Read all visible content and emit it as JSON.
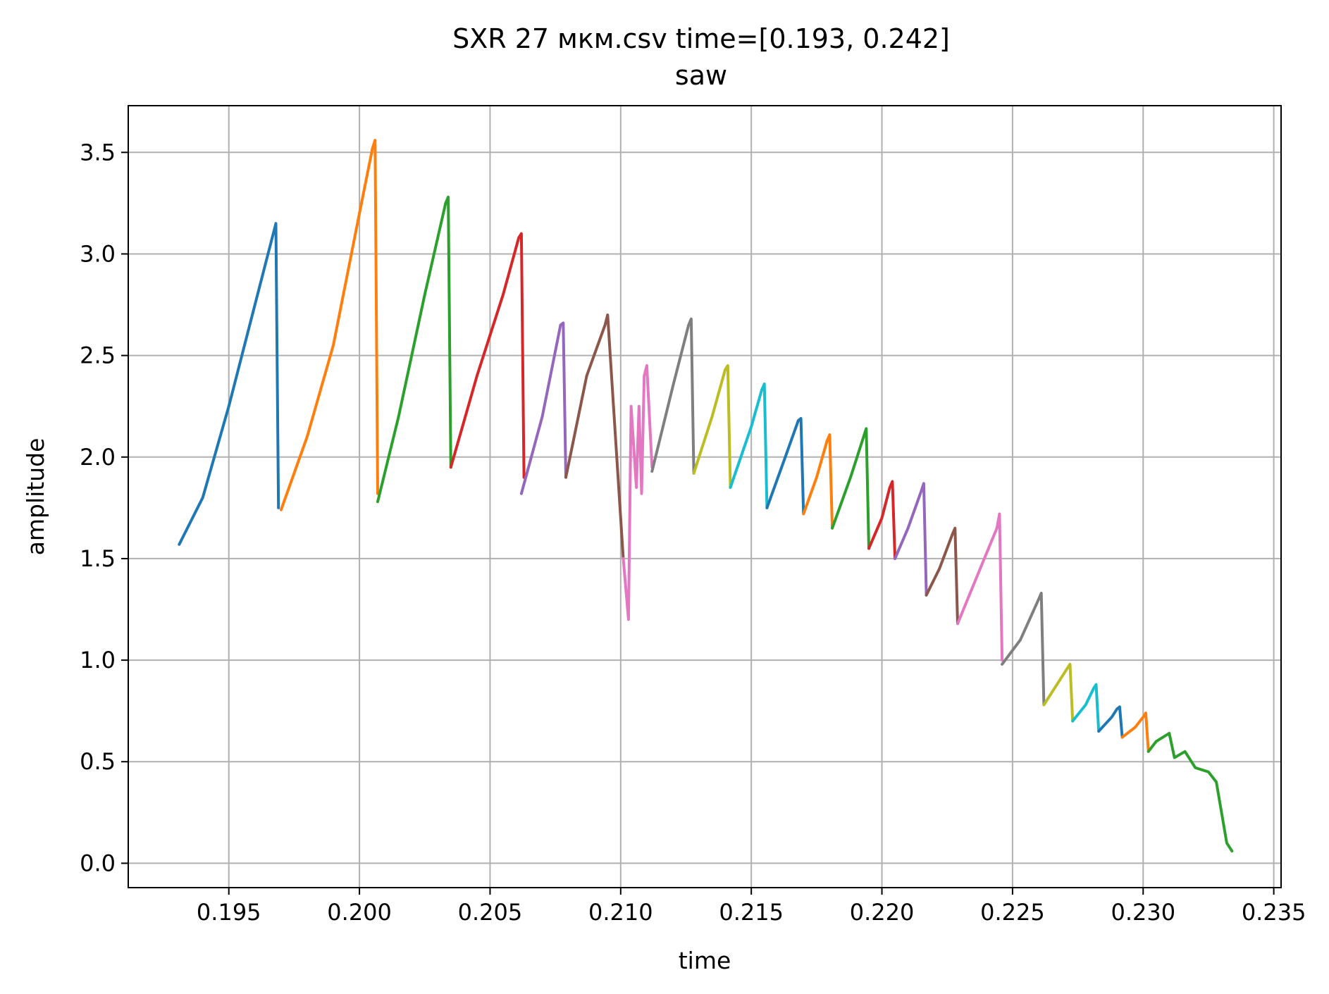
{
  "chart_data": {
    "type": "line",
    "title": "SXR 27 мкм.csv time=[0.193, 0.242]",
    "subtitle": "saw",
    "xlabel": "time",
    "ylabel": "amplitude",
    "xlim": [
      0.19115,
      0.23528
    ],
    "ylim": [
      -0.12,
      3.73
    ],
    "x_ticks": [
      0.195,
      0.2,
      0.205,
      0.21,
      0.215,
      0.22,
      0.225,
      0.23,
      0.235
    ],
    "x_tick_labels": [
      "0.195",
      "0.200",
      "0.205",
      "0.210",
      "0.215",
      "0.220",
      "0.225",
      "0.230",
      "0.235"
    ],
    "y_ticks": [
      0.0,
      0.5,
      1.0,
      1.5,
      2.0,
      2.5,
      3.0,
      3.5
    ],
    "y_tick_labels": [
      "0.0",
      "0.5",
      "1.0",
      "1.5",
      "2.0",
      "2.5",
      "3.0",
      "3.5"
    ],
    "grid": true,
    "legend": "none",
    "series": [
      {
        "color": "#1f77b4",
        "x": [
          0.1931,
          0.194,
          0.195,
          0.196,
          0.1967,
          0.1968,
          0.1969
        ],
        "y": [
          1.57,
          1.8,
          2.25,
          2.75,
          3.1,
          3.15,
          1.75
        ]
      },
      {
        "color": "#ff7f0e",
        "x": [
          0.197,
          0.198,
          0.199,
          0.2,
          0.2005,
          0.2006,
          0.2007
        ],
        "y": [
          1.74,
          2.1,
          2.55,
          3.2,
          3.52,
          3.56,
          1.82
        ]
      },
      {
        "color": "#2ca02c",
        "x": [
          0.2007,
          0.2015,
          0.2025,
          0.2033,
          0.2034,
          0.2035
        ],
        "y": [
          1.78,
          2.2,
          2.8,
          3.25,
          3.28,
          1.95
        ]
      },
      {
        "color": "#d62728",
        "x": [
          0.2035,
          0.2045,
          0.2055,
          0.2061,
          0.2062,
          0.2063
        ],
        "y": [
          1.95,
          2.4,
          2.8,
          3.08,
          3.1,
          1.9
        ]
      },
      {
        "color": "#9467bd",
        "x": [
          0.2062,
          0.207,
          0.2077,
          0.2078,
          0.2079
        ],
        "y": [
          1.82,
          2.2,
          2.65,
          2.66,
          1.9
        ]
      },
      {
        "color": "#8c564b",
        "x": [
          0.2079,
          0.2087,
          0.2094,
          0.2095,
          0.2101
        ],
        "y": [
          1.9,
          2.4,
          2.65,
          2.7,
          1.5
        ]
      },
      {
        "color": "#e377c2",
        "x": [
          0.2101,
          0.2103,
          0.2104,
          0.2106,
          0.2107,
          0.2108,
          0.2109,
          0.211,
          0.2112
        ],
        "y": [
          1.5,
          1.2,
          2.25,
          1.85,
          2.25,
          1.82,
          2.4,
          2.45,
          1.95
        ]
      },
      {
        "color": "#7f7f7f",
        "x": [
          0.2112,
          0.212,
          0.2126,
          0.2127,
          0.2128
        ],
        "y": [
          1.93,
          2.35,
          2.65,
          2.68,
          1.92
        ]
      },
      {
        "color": "#bcbd22",
        "x": [
          0.2128,
          0.2135,
          0.214,
          0.2141,
          0.2142
        ],
        "y": [
          1.92,
          2.2,
          2.43,
          2.45,
          1.85
        ]
      },
      {
        "color": "#17becf",
        "x": [
          0.2142,
          0.215,
          0.2154,
          0.2155,
          0.2156
        ],
        "y": [
          1.85,
          2.15,
          2.33,
          2.36,
          1.75
        ]
      },
      {
        "color": "#1f77b4",
        "x": [
          0.2156,
          0.2163,
          0.2168,
          0.2169,
          0.217
        ],
        "y": [
          1.75,
          2.0,
          2.18,
          2.19,
          1.72
        ]
      },
      {
        "color": "#ff7f0e",
        "x": [
          0.217,
          0.2175,
          0.2179,
          0.218,
          0.2181
        ],
        "y": [
          1.72,
          1.9,
          2.08,
          2.11,
          1.65
        ]
      },
      {
        "color": "#2ca02c",
        "x": [
          0.2181,
          0.2188,
          0.2193,
          0.2194,
          0.2195
        ],
        "y": [
          1.65,
          1.9,
          2.1,
          2.14,
          1.55
        ]
      },
      {
        "color": "#d62728",
        "x": [
          0.2195,
          0.22,
          0.2203,
          0.2204,
          0.2205
        ],
        "y": [
          1.55,
          1.7,
          1.85,
          1.88,
          1.5
        ]
      },
      {
        "color": "#9467bd",
        "x": [
          0.2205,
          0.221,
          0.2215,
          0.2216,
          0.2217
        ],
        "y": [
          1.5,
          1.65,
          1.83,
          1.87,
          1.32
        ]
      },
      {
        "color": "#8c564b",
        "x": [
          0.2217,
          0.2222,
          0.2227,
          0.2228,
          0.2229
        ],
        "y": [
          1.32,
          1.45,
          1.62,
          1.65,
          1.18
        ]
      },
      {
        "color": "#e377c2",
        "x": [
          0.2229,
          0.2236,
          0.2244,
          0.2245,
          0.2246
        ],
        "y": [
          1.18,
          1.4,
          1.65,
          1.72,
          1.0
        ]
      },
      {
        "color": "#7f7f7f",
        "x": [
          0.2246,
          0.2253,
          0.226,
          0.2261,
          0.2262
        ],
        "y": [
          0.98,
          1.1,
          1.3,
          1.33,
          0.78
        ]
      },
      {
        "color": "#bcbd22",
        "x": [
          0.2262,
          0.2267,
          0.2271,
          0.2272,
          0.2273
        ],
        "y": [
          0.78,
          0.88,
          0.96,
          0.98,
          0.7
        ]
      },
      {
        "color": "#17becf",
        "x": [
          0.2273,
          0.2278,
          0.2281,
          0.2282,
          0.2283
        ],
        "y": [
          0.7,
          0.78,
          0.86,
          0.88,
          0.65
        ]
      },
      {
        "color": "#1f77b4",
        "x": [
          0.2283,
          0.2288,
          0.229,
          0.2291,
          0.2292
        ],
        "y": [
          0.65,
          0.72,
          0.76,
          0.77,
          0.62
        ]
      },
      {
        "color": "#ff7f0e",
        "x": [
          0.2292,
          0.2297,
          0.23,
          0.2301,
          0.2302
        ],
        "y": [
          0.62,
          0.67,
          0.72,
          0.74,
          0.55
        ]
      },
      {
        "color": "#2ca02c",
        "x": [
          0.2302,
          0.2305,
          0.231,
          0.2312,
          0.2316,
          0.232,
          0.2325,
          0.2328,
          0.233,
          0.2332,
          0.2334
        ],
        "y": [
          0.55,
          0.6,
          0.64,
          0.52,
          0.55,
          0.47,
          0.45,
          0.4,
          0.25,
          0.1,
          0.06
        ]
      }
    ]
  }
}
